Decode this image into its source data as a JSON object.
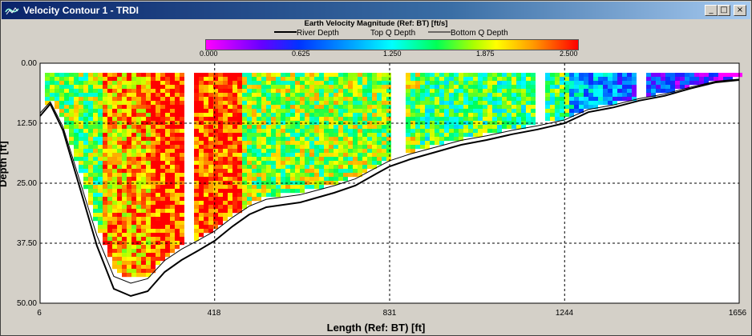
{
  "window": {
    "title": "Velocity Contour 1 - TRDI",
    "min_symbol": "_",
    "max_symbol": "□",
    "close_symbol": "×"
  },
  "colors": {
    "titlebar": "#0a246a",
    "plot_bg": "#ffffff",
    "frame": "#d4d0c8"
  },
  "chart_data": {
    "type": "heatmap",
    "title": "Earth Velocity Magnitude (Ref: BT) [ft/s]",
    "xlabel": "Length (Ref: BT) [ft]",
    "ylabel": "Depth [ft]",
    "xlim": [
      6,
      1656
    ],
    "ylim": [
      50,
      0
    ],
    "x_ticks": [
      "6",
      "418",
      "831",
      "1244",
      "1656"
    ],
    "y_ticks": [
      "0.00",
      "12.50",
      "25.00",
      "37.50",
      "50.00"
    ],
    "colorbar": {
      "min": 0,
      "max": 2.5,
      "ticks": [
        "0.000",
        "0.625",
        "1.250",
        "1.875",
        "2.500"
      ]
    },
    "legend": [
      "River Depth",
      "Top Q Depth",
      "Bottom Q Depth"
    ],
    "river_depth": {
      "x": [
        6,
        30,
        60,
        100,
        140,
        180,
        220,
        260,
        300,
        340,
        380,
        418,
        460,
        500,
        540,
        580,
        620,
        660,
        700,
        750,
        800,
        831,
        880,
        940,
        1000,
        1060,
        1120,
        1180,
        1244,
        1300,
        1360,
        1420,
        1480,
        1540,
        1600,
        1656
      ],
      "y": [
        11,
        8.5,
        14,
        26,
        38,
        47,
        48.5,
        47.5,
        43.5,
        41,
        39,
        37,
        34,
        31.5,
        30,
        29.5,
        29,
        28,
        27,
        25.5,
        23,
        21.5,
        20,
        18.5,
        17,
        16,
        14.8,
        13.8,
        12.5,
        10.2,
        9.2,
        7.8,
        6.8,
        5.3,
        4,
        3.5
      ]
    }
  }
}
